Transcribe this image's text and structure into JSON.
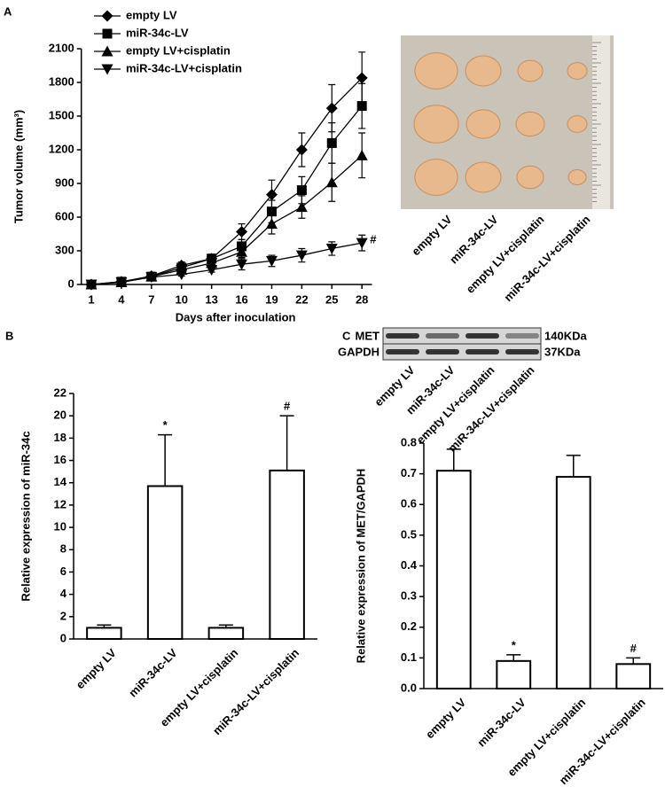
{
  "chart_data": [
    {
      "type": "line",
      "panel": "A",
      "x_label": "Days after inoculation",
      "y_label": "Tumor volume (mm³)",
      "x": [
        1,
        4,
        7,
        10,
        13,
        16,
        19,
        22,
        25,
        28
      ],
      "xlim": [
        0,
        29
      ],
      "xticks": [
        1,
        4,
        7,
        10,
        13,
        16,
        19,
        22,
        25,
        28
      ],
      "ylim": [
        0,
        2100
      ],
      "yticks": [
        0,
        300,
        600,
        900,
        1200,
        1500,
        1800,
        2100
      ],
      "series": [
        {
          "name": "empty LV",
          "color": "#000000",
          "marker": "diamond",
          "values": [
            0,
            25,
            75,
            170,
            230,
            470,
            800,
            1200,
            1570,
            1840
          ],
          "errors": [
            0,
            5,
            10,
            30,
            40,
            70,
            130,
            150,
            210,
            230
          ]
        },
        {
          "name": "miR-34c-LV",
          "color": "#000000",
          "marker": "square",
          "values": [
            0,
            25,
            70,
            150,
            230,
            340,
            650,
            840,
            1260,
            1590
          ],
          "errors": [
            0,
            5,
            10,
            25,
            30,
            60,
            100,
            120,
            180,
            200
          ]
        },
        {
          "name": "empty LV+cisplatin",
          "color": "#000000",
          "marker": "triangle",
          "values": [
            0,
            20,
            70,
            130,
            190,
            290,
            540,
            690,
            910,
            1150
          ],
          "errors": [
            0,
            5,
            10,
            20,
            30,
            50,
            90,
            100,
            170,
            200
          ]
        },
        {
          "name": "miR-34c-LV+cisplatin",
          "color": "#000000",
          "marker": "triangle-down",
          "annotation": "#",
          "values": [
            0,
            20,
            65,
            90,
            130,
            180,
            210,
            260,
            320,
            370
          ],
          "errors": [
            0,
            5,
            10,
            15,
            20,
            50,
            50,
            60,
            60,
            70
          ]
        }
      ]
    },
    {
      "type": "bar",
      "panel": "B",
      "y_label": "Relative expression of miR-34c",
      "categories": [
        "empty LV",
        "miR-34c-LV",
        "empty LV+cisplatin",
        "miR-34c-LV+cisplatin"
      ],
      "values": [
        1,
        13.7,
        1,
        15.1
      ],
      "errors": [
        0.25,
        4.6,
        0.25,
        4.9
      ],
      "annotations": [
        null,
        "*",
        null,
        "#"
      ],
      "color": "#ffffff",
      "ylim": [
        0,
        22
      ],
      "yticks": [
        0,
        2,
        4,
        6,
        8,
        10,
        12,
        14,
        16,
        18,
        20,
        22
      ]
    },
    {
      "type": "bar",
      "panel": "C",
      "y_label": "Relative expression of MET/GAPDH",
      "categories": [
        "empty LV",
        "miR-34c-LV",
        "empty LV+cisplatin",
        "miR-34c-LV+cisplatin"
      ],
      "values": [
        0.71,
        0.09,
        0.69,
        0.08
      ],
      "errors": [
        0.07,
        0.02,
        0.07,
        0.02
      ],
      "annotations": [
        null,
        "*",
        null,
        "#"
      ],
      "color": "#ffffff",
      "ylim": [
        0,
        0.8
      ],
      "yticks": [
        {
          "value": 0,
          "label": "0.0"
        },
        0.1,
        0.2,
        0.3,
        0.4,
        0.5,
        0.6,
        0.7,
        0.8
      ]
    }
  ],
  "photo": {
    "labels": [
      "empty LV",
      "miR-34c-LV",
      "empty LV+cisplatin",
      "miR-34c-LV+cisplatin"
    ]
  },
  "blot": {
    "rows": [
      "MET",
      "GAPDH"
    ],
    "sizes": [
      "140KDa",
      "37KDa"
    ],
    "lanes": [
      "empty LV",
      "miR-34c-LV",
      "empty LV+cisplatin",
      "miR-34c-LV+cisplatin"
    ]
  }
}
